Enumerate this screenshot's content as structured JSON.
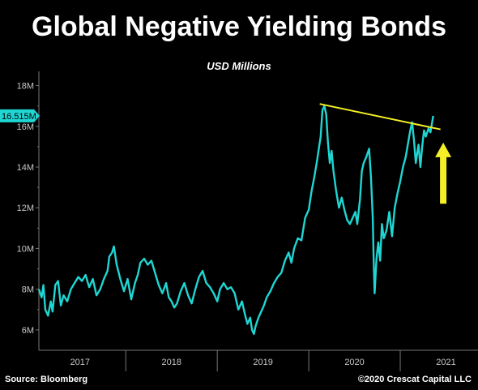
{
  "title": "Global Negative Yielding Bonds",
  "source": "Source: Bloomberg",
  "copyright": "©2020 Crescat Capital LLC",
  "colors": {
    "series": "#1fd6d3",
    "trendline": "#f4ef26",
    "arrow": "#f4ef26",
    "axis": "#777777",
    "background": "#000000"
  },
  "chart_data": {
    "type": "line",
    "subtitle": "USD Millions",
    "ylim": [
      5000000,
      18700000
    ],
    "y_ticks": [
      {
        "value": 6000000,
        "label": "6M"
      },
      {
        "value": 8000000,
        "label": "8M"
      },
      {
        "value": 10000000,
        "label": "10M"
      },
      {
        "value": 12000000,
        "label": "12M"
      },
      {
        "value": 14000000,
        "label": "14M"
      },
      {
        "value": 16000000,
        "label": "16M"
      },
      {
        "value": 18000000,
        "label": "18M"
      }
    ],
    "x_range": [
      2016.55,
      2021.35
    ],
    "x_ticks": [
      {
        "label": "2017",
        "value": 2017.0
      },
      {
        "label": "2018",
        "value": 2018.0
      },
      {
        "label": "2019",
        "value": 2019.0
      },
      {
        "label": "2020",
        "value": 2020.0
      },
      {
        "label": "2021",
        "value": 2021.0
      }
    ],
    "year_separators": [
      2017.5,
      2018.5,
      2019.5,
      2020.5,
      2021.5
    ],
    "last_value_label": "16.515M",
    "last_value": 16515000,
    "series": [
      {
        "color": "#1fd6d3",
        "points": [
          [
            2016.55,
            8000000
          ],
          [
            2016.58,
            7600000
          ],
          [
            2016.6,
            8200000
          ],
          [
            2016.62,
            7000000
          ],
          [
            2016.65,
            6700000
          ],
          [
            2016.68,
            7400000
          ],
          [
            2016.7,
            6900000
          ],
          [
            2016.73,
            8200000
          ],
          [
            2016.76,
            8400000
          ],
          [
            2016.79,
            7200000
          ],
          [
            2016.82,
            7700000
          ],
          [
            2016.86,
            7400000
          ],
          [
            2016.9,
            8000000
          ],
          [
            2016.94,
            8300000
          ],
          [
            2016.98,
            8600000
          ],
          [
            2017.02,
            8400000
          ],
          [
            2017.06,
            8700000
          ],
          [
            2017.1,
            8100000
          ],
          [
            2017.14,
            8500000
          ],
          [
            2017.18,
            7700000
          ],
          [
            2017.22,
            8000000
          ],
          [
            2017.26,
            8500000
          ],
          [
            2017.3,
            8900000
          ],
          [
            2017.32,
            9600000
          ],
          [
            2017.35,
            9800000
          ],
          [
            2017.37,
            10100000
          ],
          [
            2017.4,
            9200000
          ],
          [
            2017.44,
            8500000
          ],
          [
            2017.48,
            7900000
          ],
          [
            2017.52,
            8500000
          ],
          [
            2017.56,
            7500000
          ],
          [
            2017.6,
            8300000
          ],
          [
            2017.63,
            8700000
          ],
          [
            2017.66,
            9300000
          ],
          [
            2017.7,
            9500000
          ],
          [
            2017.74,
            9200000
          ],
          [
            2017.78,
            9400000
          ],
          [
            2017.82,
            8800000
          ],
          [
            2017.86,
            8200000
          ],
          [
            2017.9,
            7800000
          ],
          [
            2017.94,
            8300000
          ],
          [
            2017.97,
            7600000
          ],
          [
            2018.0,
            7400000
          ],
          [
            2018.03,
            7100000
          ],
          [
            2018.06,
            7300000
          ],
          [
            2018.1,
            7900000
          ],
          [
            2018.14,
            8300000
          ],
          [
            2018.18,
            7700000
          ],
          [
            2018.22,
            7300000
          ],
          [
            2018.26,
            8000000
          ],
          [
            2018.3,
            8600000
          ],
          [
            2018.34,
            8900000
          ],
          [
            2018.38,
            8300000
          ],
          [
            2018.42,
            8100000
          ],
          [
            2018.46,
            7800000
          ],
          [
            2018.5,
            7400000
          ],
          [
            2018.53,
            8000000
          ],
          [
            2018.57,
            8300000
          ],
          [
            2018.61,
            8000000
          ],
          [
            2018.65,
            8100000
          ],
          [
            2018.69,
            7800000
          ],
          [
            2018.73,
            7000000
          ],
          [
            2018.77,
            7400000
          ],
          [
            2018.8,
            6800000
          ],
          [
            2018.83,
            6300000
          ],
          [
            2018.86,
            6600000
          ],
          [
            2018.88,
            6000000
          ],
          [
            2018.9,
            5800000
          ],
          [
            2018.92,
            6200000
          ],
          [
            2018.95,
            6600000
          ],
          [
            2018.98,
            6900000
          ],
          [
            2019.01,
            7200000
          ],
          [
            2019.04,
            7600000
          ],
          [
            2019.08,
            7900000
          ],
          [
            2019.12,
            8300000
          ],
          [
            2019.16,
            8600000
          ],
          [
            2019.2,
            8800000
          ],
          [
            2019.24,
            9400000
          ],
          [
            2019.28,
            9800000
          ],
          [
            2019.31,
            9300000
          ],
          [
            2019.34,
            10000000
          ],
          [
            2019.38,
            10500000
          ],
          [
            2019.42,
            10400000
          ],
          [
            2019.46,
            11500000
          ],
          [
            2019.5,
            11900000
          ],
          [
            2019.53,
            12800000
          ],
          [
            2019.56,
            13500000
          ],
          [
            2019.59,
            14300000
          ],
          [
            2019.61,
            14900000
          ],
          [
            2019.63,
            15500000
          ],
          [
            2019.65,
            16800000
          ],
          [
            2019.67,
            17000000
          ],
          [
            2019.69,
            16600000
          ],
          [
            2019.71,
            15200000
          ],
          [
            2019.73,
            14200000
          ],
          [
            2019.75,
            14800000
          ],
          [
            2019.77,
            13800000
          ],
          [
            2019.8,
            12800000
          ],
          [
            2019.83,
            12000000
          ],
          [
            2019.86,
            12500000
          ],
          [
            2019.89,
            11900000
          ],
          [
            2019.92,
            11400000
          ],
          [
            2019.95,
            11200000
          ],
          [
            2019.98,
            11500000
          ],
          [
            2020.01,
            11800000
          ],
          [
            2020.03,
            11200000
          ],
          [
            2020.06,
            12400000
          ],
          [
            2020.08,
            13800000
          ],
          [
            2020.1,
            14200000
          ],
          [
            2020.13,
            14500000
          ],
          [
            2020.16,
            14900000
          ],
          [
            2020.18,
            13500000
          ],
          [
            2020.2,
            11500000
          ],
          [
            2020.21,
            9300000
          ],
          [
            2020.22,
            7800000
          ],
          [
            2020.24,
            9500000
          ],
          [
            2020.26,
            10300000
          ],
          [
            2020.28,
            9400000
          ],
          [
            2020.3,
            11200000
          ],
          [
            2020.32,
            10500000
          ],
          [
            2020.35,
            10900000
          ],
          [
            2020.38,
            11800000
          ],
          [
            2020.41,
            10600000
          ],
          [
            2020.44,
            12000000
          ],
          [
            2020.47,
            12700000
          ],
          [
            2020.5,
            13300000
          ],
          [
            2020.53,
            14000000
          ],
          [
            2020.56,
            14500000
          ],
          [
            2020.59,
            15300000
          ],
          [
            2020.61,
            15800000
          ],
          [
            2020.63,
            16200000
          ],
          [
            2020.65,
            15300000
          ],
          [
            2020.67,
            14200000
          ],
          [
            2020.7,
            15100000
          ],
          [
            2020.72,
            14000000
          ],
          [
            2020.74,
            15000000
          ],
          [
            2020.76,
            15800000
          ],
          [
            2020.78,
            15500000
          ],
          [
            2020.81,
            15900000
          ],
          [
            2020.83,
            15700000
          ],
          [
            2020.86,
            16515000
          ]
        ]
      }
    ],
    "trendline": {
      "from": [
        2019.62,
        17100000
      ],
      "to": [
        2020.94,
        15850000
      ]
    },
    "arrow": {
      "x": 2020.97,
      "y_from": 12200000,
      "y_to": 15200000
    }
  }
}
